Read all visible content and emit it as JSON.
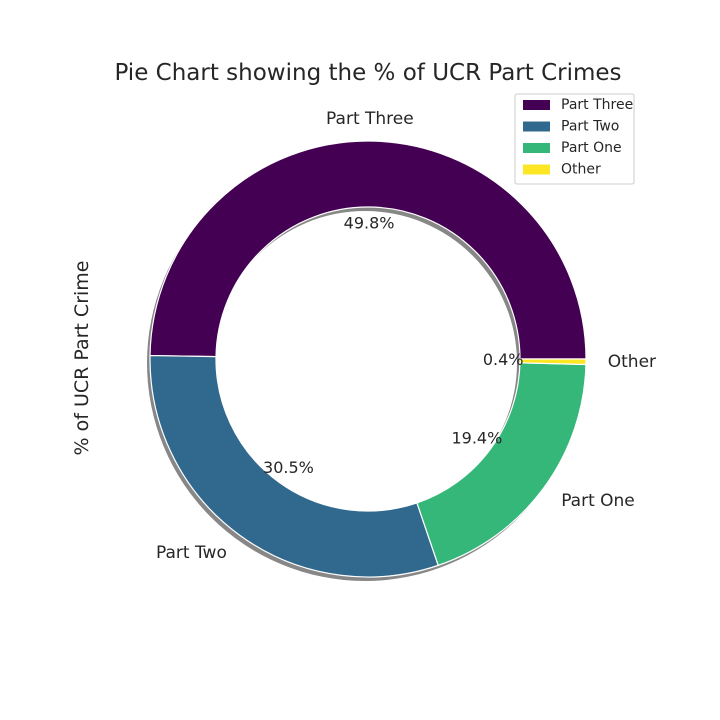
{
  "chart_data": {
    "type": "pie",
    "title": "Pie Chart showing the % of UCR Part Crimes",
    "ylabel": "% of UCR Part Crime",
    "xlabel": "",
    "categories": [
      "Part Three",
      "Part Two",
      "Part One",
      "Other"
    ],
    "values": [
      49.8,
      30.5,
      19.4,
      0.4
    ],
    "percent_labels": [
      "49.8%",
      "30.5%",
      "19.4%",
      "0.4%"
    ],
    "colors": [
      "#440154",
      "#31688e",
      "#35b779",
      "#fde725"
    ],
    "legend": {
      "placement": "top-right",
      "entries": [
        "Part Three",
        "Part Two",
        "Part One",
        "Other"
      ]
    },
    "donut": true,
    "shadow": true,
    "grid": false
  }
}
